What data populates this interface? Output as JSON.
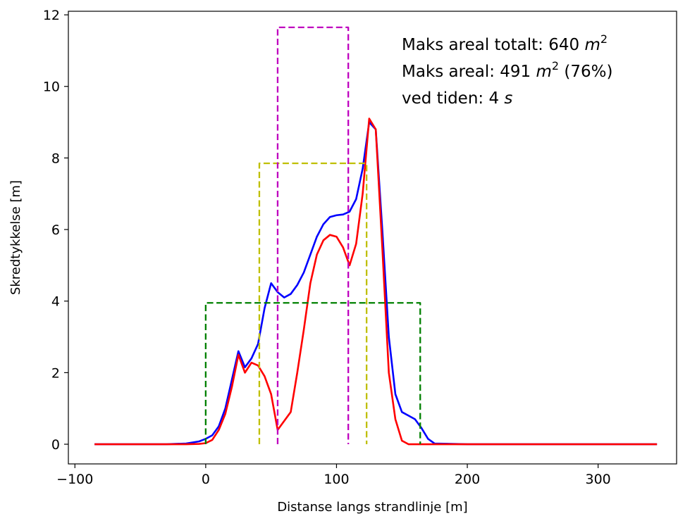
{
  "chart_data": {
    "type": "line",
    "title": "",
    "xlabel": "Distanse langs strandlinje [m]",
    "ylabel": "Skredtykkelse [m]",
    "xlim": [
      -105,
      360
    ],
    "ylim": [
      -0.55,
      12.1
    ],
    "xticks": [
      -100,
      0,
      100,
      200,
      300
    ],
    "xtick_labels": [
      "−100",
      "0",
      "100",
      "200",
      "300"
    ],
    "yticks": [
      0,
      2,
      4,
      6,
      8,
      10,
      12
    ],
    "ytick_labels": [
      "0",
      "2",
      "4",
      "6",
      "8",
      "10",
      "12"
    ],
    "grid": false,
    "annotations": [
      {
        "prefix": "Maks areal totalt: 640 ",
        "var": "m",
        "sup": "2",
        "suffix": ""
      },
      {
        "prefix": "Maks areal: 491 ",
        "var": "m",
        "sup": "2",
        "suffix": " (76%)"
      },
      {
        "prefix": "ved tiden: 4 ",
        "var": "s",
        "sup": "",
        "suffix": ""
      }
    ],
    "series": [
      {
        "color": "#0000ff",
        "style": "solid",
        "x": [
          -85,
          -60,
          -30,
          -15,
          -5,
          0,
          5,
          10,
          15,
          20,
          25,
          30,
          35,
          40,
          45,
          50,
          55,
          60,
          65,
          70,
          75,
          80,
          85,
          90,
          95,
          100,
          105,
          110,
          115,
          120,
          125,
          130,
          135,
          140,
          145,
          150,
          155,
          160,
          165,
          170,
          175,
          200,
          250,
          300,
          345
        ],
        "y": [
          0,
          0,
          0,
          0.02,
          0.08,
          0.15,
          0.25,
          0.5,
          1.0,
          1.8,
          2.6,
          2.15,
          2.4,
          2.8,
          3.8,
          4.5,
          4.25,
          4.1,
          4.2,
          4.45,
          4.8,
          5.3,
          5.8,
          6.15,
          6.35,
          6.4,
          6.42,
          6.5,
          6.85,
          7.7,
          9.0,
          8.8,
          6.0,
          3.0,
          1.4,
          0.9,
          0.8,
          0.7,
          0.45,
          0.15,
          0.02,
          0,
          0,
          0,
          0
        ]
      },
      {
        "color": "#ff0000",
        "style": "solid",
        "x": [
          -85,
          -60,
          -30,
          -15,
          -5,
          0,
          5,
          10,
          15,
          20,
          25,
          30,
          35,
          40,
          45,
          50,
          55,
          60,
          65,
          70,
          75,
          80,
          85,
          90,
          95,
          100,
          105,
          110,
          115,
          120,
          125,
          130,
          135,
          140,
          145,
          150,
          155,
          160,
          165,
          170,
          175,
          200,
          250,
          300,
          345
        ],
        "y": [
          0,
          0,
          0,
          0,
          0.01,
          0.03,
          0.12,
          0.4,
          0.85,
          1.6,
          2.5,
          2.0,
          2.28,
          2.2,
          1.9,
          1.4,
          0.4,
          0.65,
          0.9,
          2.0,
          3.2,
          4.5,
          5.3,
          5.7,
          5.85,
          5.8,
          5.5,
          5.0,
          5.6,
          7.0,
          9.1,
          8.8,
          5.5,
          2.0,
          0.7,
          0.1,
          0.0,
          0,
          0,
          0,
          0,
          0,
          0,
          0,
          0
        ]
      },
      {
        "color": "#008000",
        "style": "dashed",
        "x": [
          0,
          0,
          164,
          164
        ],
        "y": [
          0,
          3.95,
          3.95,
          0
        ]
      },
      {
        "color": "#bfbf00",
        "style": "dashed",
        "x": [
          41,
          41,
          123,
          123
        ],
        "y": [
          0,
          7.85,
          7.85,
          0
        ]
      },
      {
        "color": "#bf00bf",
        "style": "dashed",
        "x": [
          55,
          55,
          109,
          109
        ],
        "y": [
          0,
          11.65,
          11.65,
          0
        ]
      }
    ]
  }
}
